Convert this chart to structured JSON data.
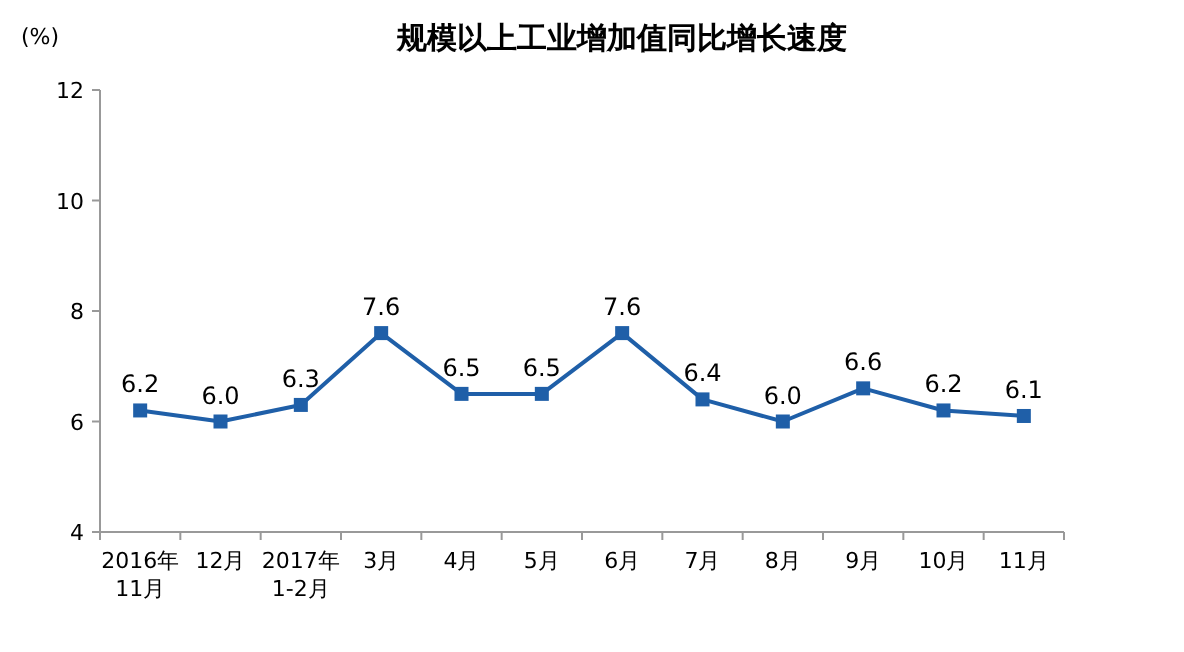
{
  "chart_data": {
    "type": "line",
    "title": "规模以上工业增加值同比增长速度",
    "ylabel": "(%)",
    "categories": [
      "2016年\n11月",
      "12月",
      "2017年\n1-2月",
      "3月",
      "4月",
      "5月",
      "6月",
      "7月",
      "8月",
      "9月",
      "10月",
      "11月"
    ],
    "series": [
      {
        "color": "#1f5fa8",
        "values": [
          6.2,
          6.0,
          6.3,
          7.6,
          6.5,
          6.5,
          7.6,
          6.4,
          6.0,
          6.6,
          6.2,
          6.1
        ],
        "value_labels": [
          "6.2",
          "6.0",
          "6.3",
          "7.6",
          "6.5",
          "6.5",
          "7.6",
          "6.4",
          "6.0",
          "6.6",
          "6.2",
          "6.1"
        ]
      }
    ],
    "ylim": [
      4,
      12
    ],
    "yticks": [
      4,
      6,
      8,
      10,
      12
    ],
    "grid": false,
    "marker": "square",
    "line_style": "solid"
  }
}
